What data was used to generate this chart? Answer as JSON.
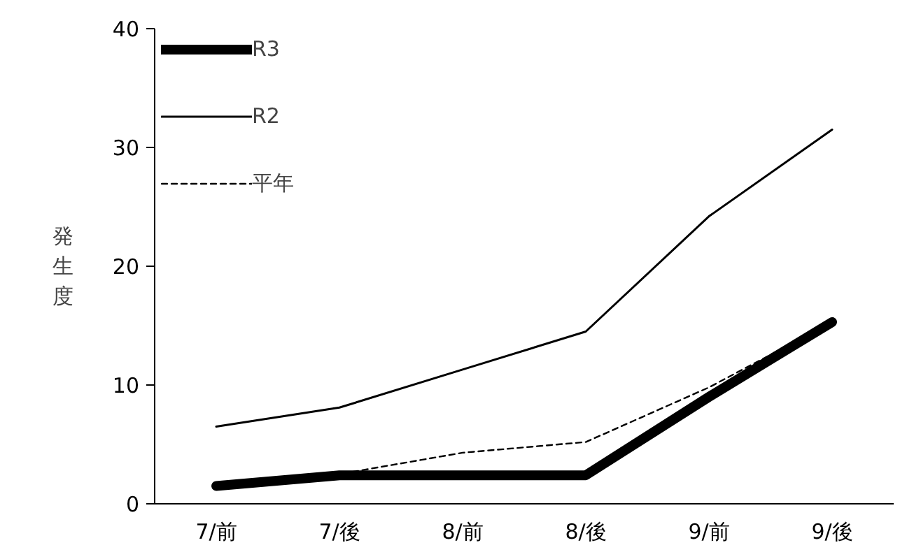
{
  "chart_data": {
    "type": "line",
    "ylabel": "発生度",
    "categories": [
      "7/前",
      "7/後",
      "8/前",
      "8/後",
      "9/前",
      "9/後"
    ],
    "series": [
      {
        "name": "R3",
        "color": "#000000",
        "values": [
          1.5,
          2.4,
          2.4,
          2.4,
          9,
          15.3
        ],
        "line_style": "solid"
      },
      {
        "name": "R2",
        "color": "#000000",
        "values": [
          6.5,
          8.1,
          11.3,
          14.5,
          24.2,
          31.5
        ],
        "line_style": "solid"
      },
      {
        "name": "平年",
        "color": "#000000",
        "values": [
          1.5,
          2.5,
          4.3,
          5.2,
          9.8,
          15.3
        ],
        "line_style": "dashed"
      }
    ],
    "ylim": [
      0,
      40
    ],
    "yticks": [
      0,
      10,
      20,
      30,
      40
    ],
    "grid": false,
    "legend": "top left",
    "marker": "none"
  }
}
